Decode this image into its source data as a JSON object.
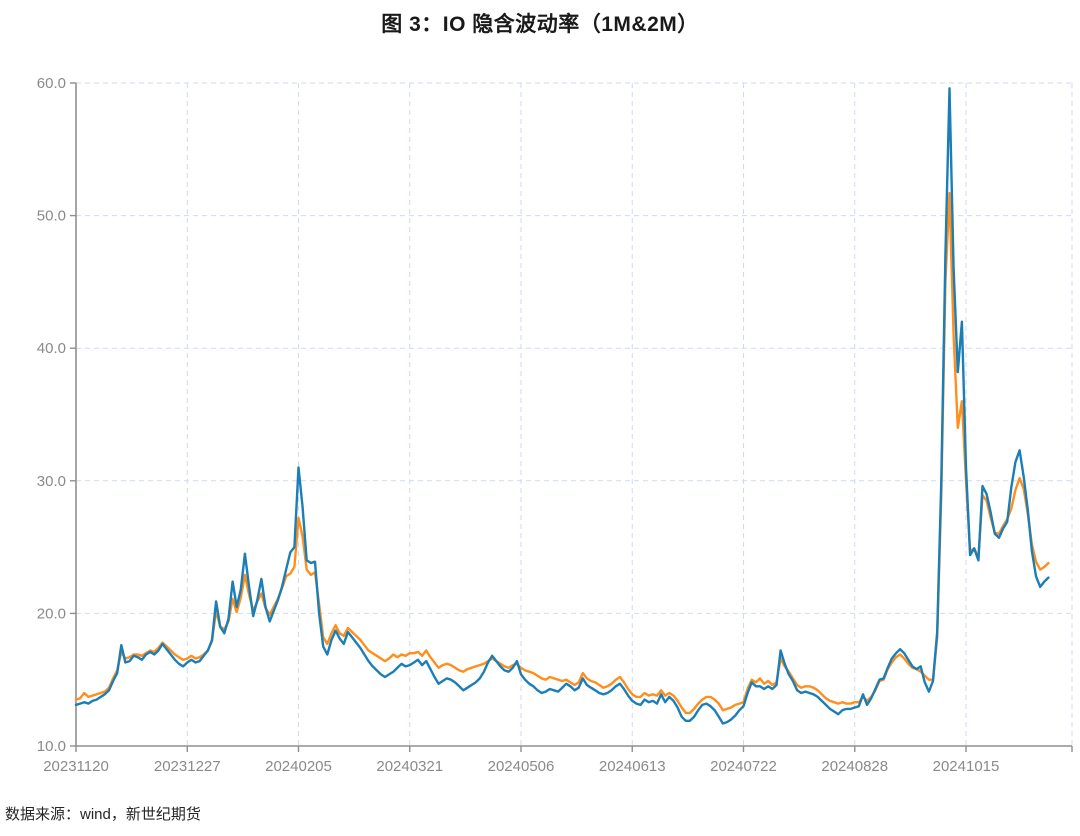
{
  "title": "图 3：IO 隐含波动率（1M&2M）",
  "source_note": "数据来源：wind，新世纪期货",
  "colors": {
    "series_1m": "#1b7eb6",
    "series_2m": "#ff8e1c",
    "grid": "#cfd9f0",
    "axis": "#8f8f8f",
    "tick_label": "#8a8a8a",
    "title_text": "#1a1a1a"
  },
  "chart_data": {
    "type": "line",
    "title": "图 3：IO 隐含波动率（1M&2M）",
    "xlabel": "",
    "ylabel": "",
    "ylim": [
      10,
      60
    ],
    "y_ticks": [
      10,
      20,
      30,
      40,
      50,
      60
    ],
    "y_tick_labels": [
      "10.0",
      "20.0",
      "30.0",
      "40.0",
      "50.0",
      "60.0"
    ],
    "grid": true,
    "legend": "none",
    "x_tick_labels": [
      "20231120",
      "20231227",
      "20240205",
      "20240321",
      "20240506",
      "20240613",
      "20240722",
      "20240828",
      "20241015"
    ],
    "x_tick_indices": [
      0,
      27,
      54,
      81,
      108,
      135,
      162,
      189,
      216
    ],
    "series": [
      {
        "name": "IO隐含波动率 1M",
        "color": "#1b7eb6",
        "values": [
          13.1,
          13.2,
          13.3,
          13.2,
          13.4,
          13.5,
          13.7,
          13.9,
          14.2,
          14.9,
          15.5,
          17.6,
          16.3,
          16.4,
          16.8,
          16.7,
          16.5,
          16.9,
          17.1,
          16.9,
          17.2,
          17.7,
          17.3,
          16.9,
          16.5,
          16.2,
          16.0,
          16.3,
          16.5,
          16.3,
          16.4,
          16.8,
          17.2,
          18.0,
          20.9,
          19.0,
          18.5,
          19.6,
          22.4,
          20.5,
          21.8,
          24.5,
          22.0,
          19.8,
          21.0,
          22.6,
          20.5,
          19.4,
          20.2,
          21.0,
          22.0,
          23.3,
          24.6,
          25.0,
          31.0,
          28.0,
          24.0,
          23.8,
          23.9,
          20.0,
          17.5,
          16.9,
          18.0,
          18.7,
          18.1,
          17.7,
          18.6,
          18.2,
          17.8,
          17.4,
          16.9,
          16.4,
          16.0,
          15.7,
          15.4,
          15.2,
          15.4,
          15.6,
          15.9,
          16.2,
          16.0,
          16.1,
          16.3,
          16.5,
          16.1,
          16.4,
          15.8,
          15.2,
          14.7,
          14.9,
          15.1,
          15.0,
          14.8,
          14.5,
          14.2,
          14.4,
          14.6,
          14.8,
          15.1,
          15.6,
          16.3,
          16.8,
          16.4,
          16.0,
          15.7,
          15.6,
          15.9,
          16.4,
          15.4,
          15.0,
          14.7,
          14.5,
          14.2,
          14.0,
          14.1,
          14.3,
          14.2,
          14.1,
          14.4,
          14.7,
          14.5,
          14.2,
          14.4,
          15.1,
          14.6,
          14.4,
          14.2,
          14.0,
          13.9,
          14.0,
          14.2,
          14.5,
          14.7,
          14.3,
          13.8,
          13.4,
          13.2,
          13.1,
          13.5,
          13.3,
          13.4,
          13.2,
          13.9,
          13.3,
          13.7,
          13.4,
          12.9,
          12.2,
          11.9,
          11.9,
          12.2,
          12.7,
          13.1,
          13.2,
          13.0,
          12.7,
          12.2,
          11.7,
          11.8,
          12.0,
          12.3,
          12.7,
          13.0,
          14.0,
          14.8,
          14.5,
          14.5,
          14.3,
          14.5,
          14.3,
          14.6,
          17.2,
          16.2,
          15.4,
          14.9,
          14.2,
          14.0,
          14.1,
          14.0,
          13.9,
          13.7,
          13.4,
          13.1,
          12.8,
          12.6,
          12.4,
          12.7,
          12.8,
          12.8,
          12.9,
          13.0,
          13.9,
          13.1,
          13.6,
          14.3,
          15.0,
          15.1,
          15.9,
          16.6,
          17.0,
          17.3,
          17.0,
          16.5,
          16.0,
          15.8,
          16.0,
          14.8,
          14.1,
          14.9,
          18.6,
          30.0,
          47.0,
          59.6,
          46.0,
          38.2,
          42.0,
          31.0,
          24.4,
          24.9,
          24.0,
          29.6,
          29.0,
          27.6,
          26.0,
          25.7,
          26.4,
          26.9,
          29.5,
          31.4,
          32.3,
          30.3,
          27.8,
          24.7,
          22.8,
          22.0,
          22.4,
          22.7
        ]
      },
      {
        "name": "IO隐含波动率 2M",
        "color": "#ff8e1c",
        "values": [
          13.5,
          13.6,
          14.0,
          13.7,
          13.8,
          13.9,
          14.0,
          14.1,
          14.4,
          15.1,
          15.7,
          17.1,
          16.6,
          16.7,
          16.9,
          16.9,
          16.8,
          17.0,
          17.2,
          17.1,
          17.4,
          17.8,
          17.5,
          17.2,
          16.9,
          16.7,
          16.5,
          16.6,
          16.8,
          16.6,
          16.7,
          16.9,
          17.2,
          17.9,
          20.2,
          19.0,
          18.8,
          19.4,
          21.1,
          20.1,
          21.2,
          22.9,
          21.4,
          20.2,
          20.9,
          21.5,
          20.4,
          19.9,
          20.5,
          21.1,
          21.9,
          22.8,
          23.0,
          23.5,
          27.2,
          25.8,
          23.3,
          22.9,
          23.1,
          20.7,
          18.2,
          17.7,
          18.5,
          19.1,
          18.5,
          18.3,
          18.9,
          18.6,
          18.3,
          18.0,
          17.6,
          17.2,
          17.0,
          16.8,
          16.6,
          16.4,
          16.6,
          16.9,
          16.7,
          16.9,
          16.8,
          17.0,
          17.0,
          17.1,
          16.8,
          17.2,
          16.7,
          16.3,
          15.9,
          16.1,
          16.2,
          16.1,
          15.9,
          15.7,
          15.6,
          15.8,
          15.9,
          16.0,
          16.1,
          16.2,
          16.4,
          16.6,
          16.4,
          16.2,
          16.0,
          15.9,
          16.1,
          16.2,
          15.9,
          15.7,
          15.6,
          15.5,
          15.3,
          15.1,
          15.0,
          15.2,
          15.1,
          15.0,
          14.9,
          15.0,
          14.8,
          14.6,
          14.8,
          15.5,
          15.1,
          14.9,
          14.8,
          14.6,
          14.4,
          14.5,
          14.7,
          15.0,
          15.2,
          14.8,
          14.3,
          13.9,
          13.7,
          13.7,
          14.0,
          13.8,
          13.9,
          13.8,
          14.2,
          13.8,
          14.0,
          13.8,
          13.4,
          12.9,
          12.5,
          12.5,
          12.8,
          13.2,
          13.5,
          13.7,
          13.7,
          13.5,
          13.2,
          12.7,
          12.8,
          12.9,
          13.1,
          13.2,
          13.3,
          14.3,
          15.0,
          14.8,
          15.1,
          14.7,
          14.9,
          14.6,
          14.8,
          16.6,
          16.0,
          15.6,
          15.1,
          14.6,
          14.4,
          14.5,
          14.5,
          14.4,
          14.2,
          13.9,
          13.6,
          13.4,
          13.3,
          13.2,
          13.3,
          13.2,
          13.2,
          13.3,
          13.3,
          13.7,
          13.4,
          13.7,
          14.2,
          14.9,
          15.0,
          15.8,
          16.3,
          16.7,
          16.9,
          16.6,
          16.2,
          15.9,
          15.8,
          15.6,
          15.3,
          15.0,
          15.0,
          18.2,
          29.0,
          45.0,
          51.7,
          41.0,
          34.0,
          36.0,
          30.0,
          24.7,
          24.9,
          24.2,
          28.9,
          28.5,
          27.2,
          26.1,
          26.0,
          26.6,
          27.1,
          27.9,
          29.3,
          30.2,
          29.4,
          27.5,
          25.2,
          23.9,
          23.3,
          23.5,
          23.8
        ]
      }
    ]
  }
}
